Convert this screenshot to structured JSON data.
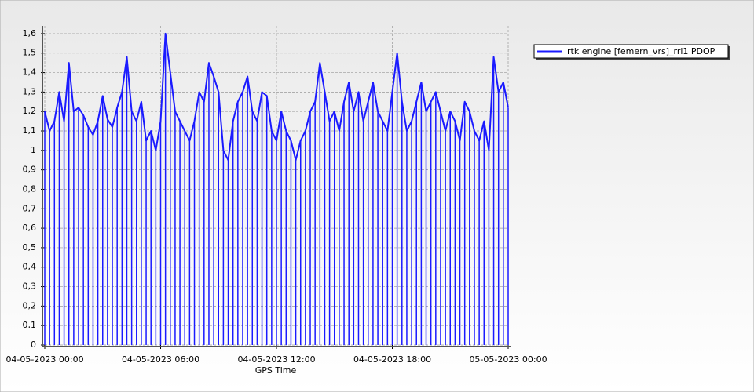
{
  "chart_data": {
    "type": "line",
    "x_label": "GPS Time",
    "x": [
      "04-05-2023 00:00",
      "04-05-2023 00:15",
      "04-05-2023 00:30",
      "04-05-2023 00:45",
      "04-05-2023 01:00",
      "04-05-2023 01:15",
      "04-05-2023 01:30",
      "04-05-2023 01:45",
      "04-05-2023 02:00",
      "04-05-2023 02:15",
      "04-05-2023 02:30",
      "04-05-2023 02:45",
      "04-05-2023 03:00",
      "04-05-2023 03:15",
      "04-05-2023 03:30",
      "04-05-2023 03:45",
      "04-05-2023 04:00",
      "04-05-2023 04:15",
      "04-05-2023 04:30",
      "04-05-2023 04:45",
      "04-05-2023 05:00",
      "04-05-2023 05:15",
      "04-05-2023 05:30",
      "04-05-2023 05:45",
      "04-05-2023 06:00",
      "04-05-2023 06:15",
      "04-05-2023 06:30",
      "04-05-2023 06:45",
      "04-05-2023 07:00",
      "04-05-2023 07:15",
      "04-05-2023 07:30",
      "04-05-2023 07:45",
      "04-05-2023 08:00",
      "04-05-2023 08:15",
      "04-05-2023 08:30",
      "04-05-2023 08:45",
      "04-05-2023 09:00",
      "04-05-2023 09:15",
      "04-05-2023 09:30",
      "04-05-2023 09:45",
      "04-05-2023 10:00",
      "04-05-2023 10:15",
      "04-05-2023 10:30",
      "04-05-2023 10:45",
      "04-05-2023 11:00",
      "04-05-2023 11:15",
      "04-05-2023 11:30",
      "04-05-2023 11:45",
      "04-05-2023 12:00",
      "04-05-2023 12:15",
      "04-05-2023 12:30",
      "04-05-2023 12:45",
      "04-05-2023 13:00",
      "04-05-2023 13:15",
      "04-05-2023 13:30",
      "04-05-2023 13:45",
      "04-05-2023 14:00",
      "04-05-2023 14:15",
      "04-05-2023 14:30",
      "04-05-2023 14:45",
      "04-05-2023 15:00",
      "04-05-2023 15:15",
      "04-05-2023 15:30",
      "04-05-2023 15:45",
      "04-05-2023 16:00",
      "04-05-2023 16:15",
      "04-05-2023 16:30",
      "04-05-2023 16:45",
      "04-05-2023 17:00",
      "04-05-2023 17:15",
      "04-05-2023 17:30",
      "04-05-2023 17:45",
      "04-05-2023 18:00",
      "04-05-2023 18:15",
      "04-05-2023 18:30",
      "04-05-2023 18:45",
      "04-05-2023 19:00",
      "04-05-2023 19:15",
      "04-05-2023 19:30",
      "04-05-2023 19:45",
      "04-05-2023 20:00",
      "04-05-2023 20:15",
      "04-05-2023 20:30",
      "04-05-2023 20:45",
      "04-05-2023 21:00",
      "04-05-2023 21:15",
      "04-05-2023 21:30",
      "04-05-2023 21:45",
      "04-05-2023 22:00",
      "04-05-2023 22:15",
      "04-05-2023 22:30",
      "04-05-2023 22:45",
      "04-05-2023 23:00",
      "04-05-2023 23:15",
      "04-05-2023 23:30",
      "04-05-2023 23:45",
      "05-05-2023 00:00"
    ],
    "series": [
      {
        "name": "rtk engine [femern_vrs]_rri1 PDOP",
        "color": "#1a1aff",
        "values": [
          1.2,
          1.1,
          1.15,
          1.3,
          1.15,
          1.45,
          1.2,
          1.22,
          1.18,
          1.12,
          1.08,
          1.15,
          1.28,
          1.16,
          1.12,
          1.22,
          1.3,
          1.48,
          1.2,
          1.15,
          1.25,
          1.05,
          1.1,
          1.0,
          1.15,
          1.6,
          1.4,
          1.2,
          1.15,
          1.1,
          1.05,
          1.15,
          1.3,
          1.25,
          1.45,
          1.38,
          1.3,
          1.0,
          0.95,
          1.15,
          1.25,
          1.3,
          1.38,
          1.2,
          1.15,
          1.3,
          1.28,
          1.1,
          1.05,
          1.2,
          1.1,
          1.05,
          0.95,
          1.05,
          1.1,
          1.2,
          1.25,
          1.45,
          1.3,
          1.15,
          1.2,
          1.1,
          1.25,
          1.35,
          1.2,
          1.3,
          1.15,
          1.25,
          1.35,
          1.2,
          1.15,
          1.1,
          1.3,
          1.5,
          1.25,
          1.1,
          1.15,
          1.25,
          1.35,
          1.2,
          1.25,
          1.3,
          1.2,
          1.1,
          1.2,
          1.15,
          1.05,
          1.25,
          1.2,
          1.1,
          1.05,
          1.15,
          1.0,
          1.48,
          1.3,
          1.35,
          1.22
        ]
      }
    ],
    "drop_lines": true,
    "xlim": [
      "04-05-2023 00:00",
      "05-05-2023 00:00"
    ],
    "xticks": [
      "04-05-2023 00:00",
      "04-05-2023 06:00",
      "04-05-2023 12:00",
      "04-05-2023 18:00",
      "05-05-2023 00:00"
    ],
    "ylim": [
      0,
      1.64
    ],
    "yticks": [
      0,
      {
        "value": 0.1,
        "label": "0,1"
      },
      {
        "value": 0.2,
        "label": "0,2"
      },
      {
        "value": 0.3,
        "label": "0,3"
      },
      {
        "value": 0.4,
        "label": "0,4"
      },
      {
        "value": 0.5,
        "label": "0,5"
      },
      {
        "value": 0.6,
        "label": "0,6"
      },
      {
        "value": 0.7,
        "label": "0,7"
      },
      {
        "value": 0.8,
        "label": "0,8"
      },
      {
        "value": 0.9,
        "label": "0,9"
      },
      1,
      {
        "value": 1.1,
        "label": "1,1"
      },
      {
        "value": 1.2,
        "label": "1,2"
      },
      {
        "value": 1.3,
        "label": "1,3"
      },
      {
        "value": 1.4,
        "label": "1,4"
      },
      {
        "value": 1.5,
        "label": "1,5"
      },
      {
        "value": 1.6,
        "label": "1,6"
      }
    ],
    "grid": true,
    "legend": "top-right"
  }
}
